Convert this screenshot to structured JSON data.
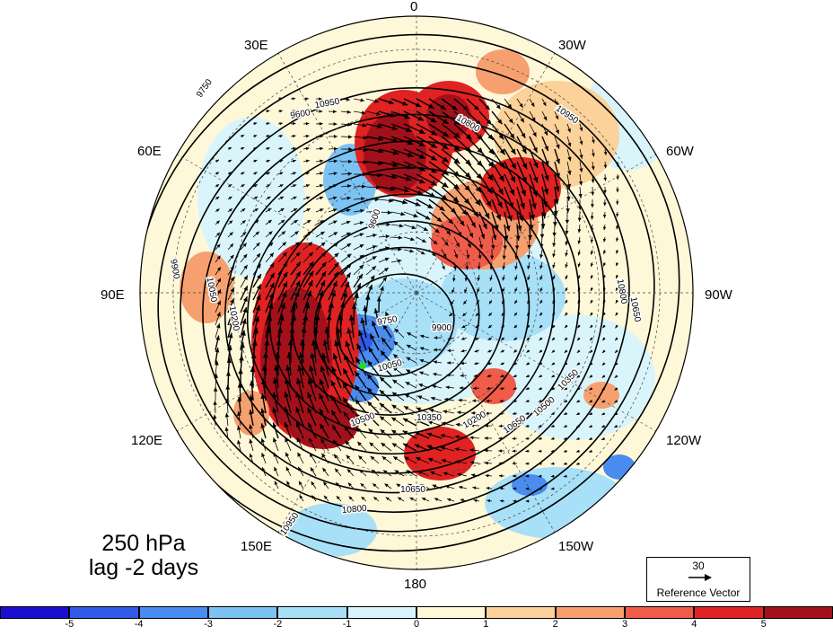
{
  "title": {
    "line1": "250 hPa",
    "line2": "lag -2 days"
  },
  "longitude_labels": [
    "0",
    "30W",
    "60W",
    "90W",
    "120W",
    "150W",
    "180",
    "150E",
    "120E",
    "90E",
    "60E",
    "30E"
  ],
  "contour_levels": [
    9600,
    9750,
    9900,
    10050,
    10200,
    10350,
    10500,
    10650,
    10800,
    10950
  ],
  "contour_labels": [
    "10950",
    "10800",
    "10650",
    "10500",
    "10350",
    "10200",
    "10050",
    "9900",
    "9750",
    "9600"
  ],
  "reference_vector": {
    "value": "30",
    "label": "Reference Vector"
  },
  "colorbar": {
    "ticks": [
      "-5",
      "-4",
      "-3",
      "-2",
      "-1",
      "0",
      "1",
      "2",
      "3",
      "4",
      "5"
    ],
    "colors": [
      "#1a0fd0",
      "#2f5be8",
      "#4a8cef",
      "#7cc3f4",
      "#a8e0f8",
      "#d9f5fb",
      "#fff8d8",
      "#fbd29a",
      "#f6a070",
      "#f05b4a",
      "#e02222",
      "#a4101a"
    ]
  }
}
